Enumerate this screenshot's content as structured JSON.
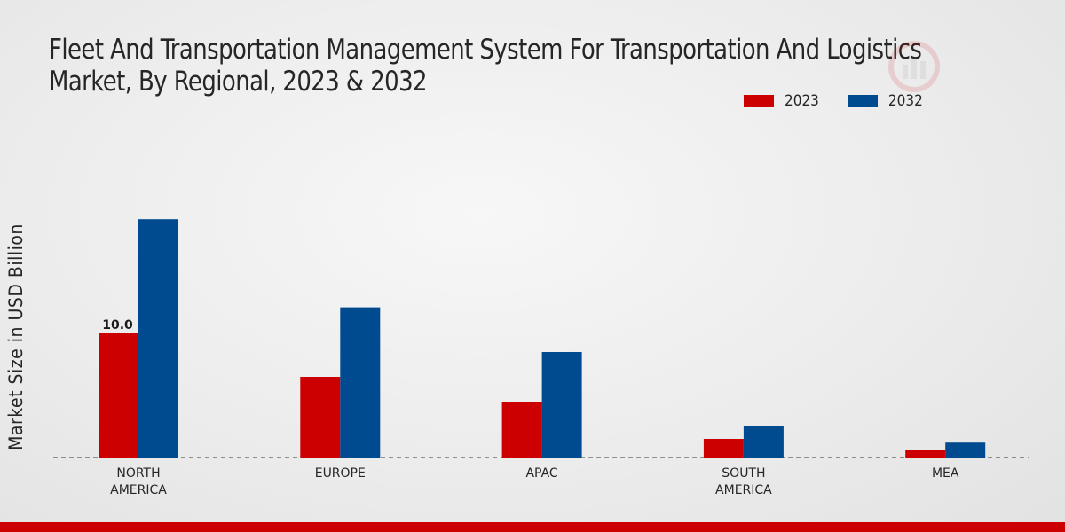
{
  "title": {
    "line1": "Fleet And Transportation Management System For Transportation And Logistics",
    "line2": "Market, By Regional, 2023 & 2032"
  },
  "colors": {
    "s2023": "#cc0000",
    "s2032": "#004a8f",
    "bottom_bar": "#cc0000"
  },
  "chart_data": {
    "type": "bar",
    "title": "Fleet And Transportation Management System For Transportation And Logistics Market, By Regional, 2023 & 2032",
    "xlabel": "",
    "ylabel": "Market Size in USD Billion",
    "categories": [
      "NORTH\nAMERICA",
      "EUROPE",
      "APAC",
      "SOUTH\nAMERICA",
      "MEA"
    ],
    "series": [
      {
        "name": "2023",
        "color": "#cc0000",
        "values": [
          10.0,
          6.5,
          4.5,
          1.5,
          0.6
        ]
      },
      {
        "name": "2032",
        "color": "#004a8f",
        "values": [
          19.2,
          12.1,
          8.5,
          2.5,
          1.2
        ]
      }
    ],
    "data_labels": [
      {
        "series": "2023",
        "category_index": 0,
        "text": "10.0"
      }
    ],
    "ylim": [
      0,
      30
    ],
    "grid": false,
    "legend_position": "top-right"
  }
}
